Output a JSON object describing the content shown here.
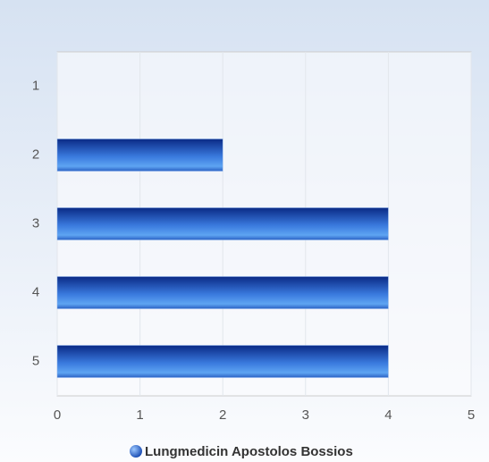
{
  "chart_data": {
    "type": "bar",
    "orientation": "horizontal",
    "categories": [
      "1",
      "2",
      "3",
      "4",
      "5"
    ],
    "series": [
      {
        "name": "Lungmedicin Apostolos Bossios",
        "color": "#2f6fd6",
        "values": [
          0,
          2,
          4,
          4,
          4
        ]
      }
    ],
    "xlim": [
      0,
      5
    ],
    "xticks": [
      0,
      1,
      2,
      3,
      4,
      5
    ],
    "grid": true,
    "legend": "bottom"
  }
}
